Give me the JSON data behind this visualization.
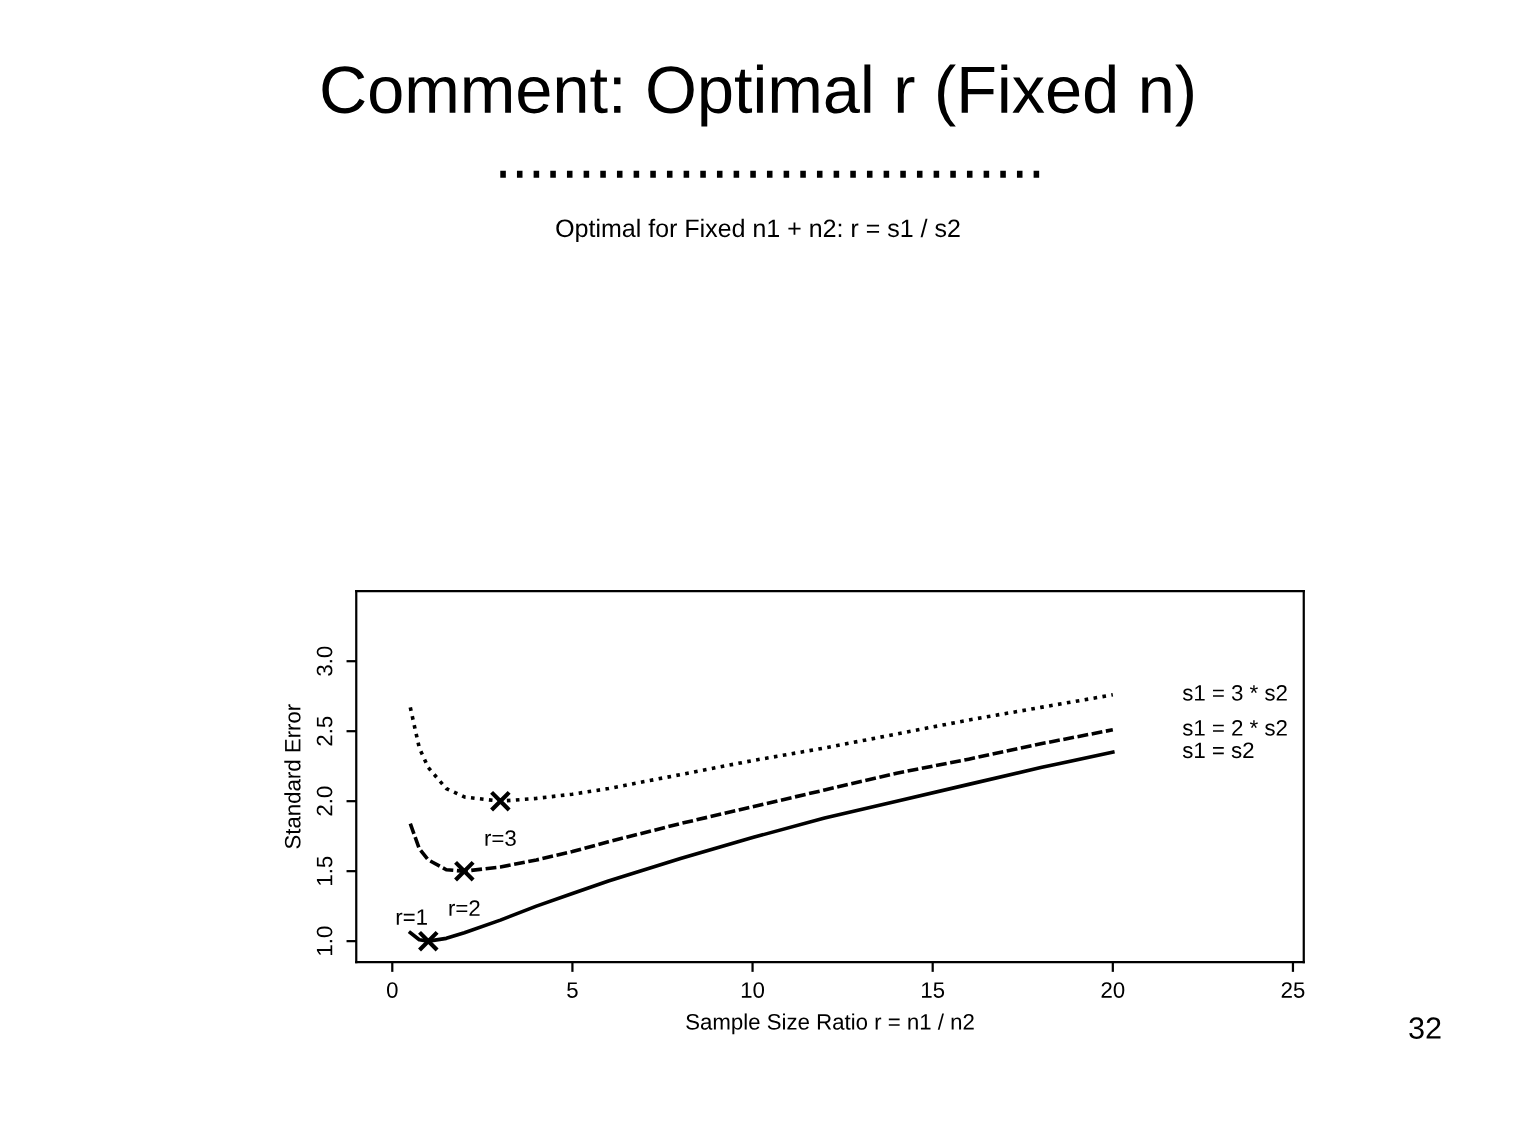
{
  "chart_data": {
    "type": "line",
    "title": "Comment: Optimal r (Fixed n)",
    "subtitle": "Optimal for Fixed n1 + n2: r = s1 / s2",
    "xlabel": "Sample Size Ratio r = n1 / n2",
    "ylabel": "Standard Error",
    "x": [
      0.5,
      0.75,
      1,
      1.5,
      2,
      3,
      4,
      5,
      6,
      8,
      10,
      12,
      14,
      16,
      18,
      20
    ],
    "series": [
      {
        "name": "s1 = s2",
        "color": "#000000",
        "line_style": "solid",
        "values": [
          1.06,
          1.01,
          1.0,
          1.02,
          1.06,
          1.15,
          1.25,
          1.34,
          1.43,
          1.59,
          1.74,
          1.88,
          2.0,
          2.12,
          2.24,
          2.35
        ]
      },
      {
        "name": "s1 = 2 * s2",
        "color": "#000000",
        "line_style": "dashed",
        "values": [
          1.84,
          1.66,
          1.58,
          1.51,
          1.5,
          1.53,
          1.58,
          1.64,
          1.71,
          1.84,
          1.96,
          2.08,
          2.2,
          2.3,
          2.41,
          2.51
        ]
      },
      {
        "name": "s1 = 3 * s2",
        "color": "#000000",
        "line_style": "dotted",
        "values": [
          2.67,
          2.38,
          2.24,
          2.09,
          2.03,
          2.0,
          2.02,
          2.05,
          2.09,
          2.19,
          2.29,
          2.38,
          2.48,
          2.58,
          2.67,
          2.76
        ]
      },
      {
        "type": "scatter",
        "marker": "cross",
        "color": "#000000",
        "x": [
          1,
          2,
          3
        ],
        "values": [
          1.0,
          1.5,
          2.0
        ]
      }
    ],
    "annotations": [
      {
        "text": "r=1",
        "x": 1,
        "y": 1.0
      },
      {
        "text": "r=2",
        "x": 2,
        "y": 1.5
      },
      {
        "text": "r=3",
        "x": 3,
        "y": 2.0
      },
      "32"
    ],
    "xlim": [
      -1,
      25.3
    ],
    "xticks": [
      0,
      5,
      10,
      15,
      20,
      25
    ],
    "ylim": [
      0.85,
      3.5
    ],
    "yticks": [
      {
        "value": 1,
        "label": "1.0"
      },
      {
        "value": 1.5,
        "label": "1.5"
      },
      {
        "value": 2,
        "label": "2.0"
      },
      {
        "value": 2.5,
        "label": "2.5"
      },
      {
        "value": 3,
        "label": "3.0"
      }
    ],
    "grid": false,
    "legend": false
  }
}
